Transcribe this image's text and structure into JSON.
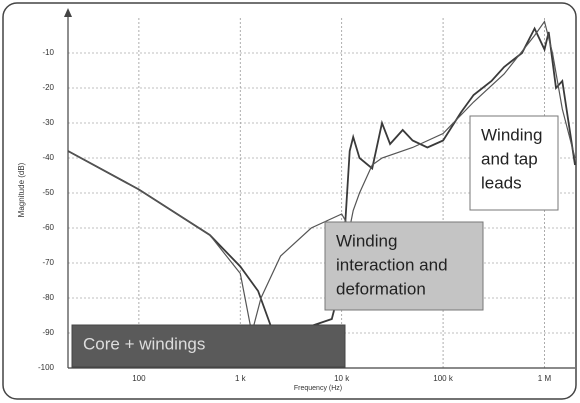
{
  "chart_data": {
    "type": "line",
    "log_x": true,
    "grid": true,
    "ylabel": "Magnitude (dB)",
    "xlabel": "Frequency (Hz)",
    "xlim": [
      20,
      2000000
    ],
    "xticks": [
      {
        "value": 100,
        "label": "100"
      },
      {
        "value": 1000,
        "label": "1 k"
      },
      {
        "value": 10000,
        "label": "10 k"
      },
      {
        "value": 100000,
        "label": "100 k"
      },
      {
        "value": 1000000,
        "label": "1 M"
      }
    ],
    "ylim": [
      -100,
      0
    ],
    "yticks": [
      -100,
      -90,
      -80,
      -70,
      -60,
      -50,
      -40,
      -30,
      -20,
      -10
    ],
    "series": [
      {
        "color": "#3a3a3a",
        "x": [
          20,
          100,
          500,
          1000,
          1500,
          2000,
          2500,
          3000,
          5000,
          8000,
          10000,
          12000,
          13000,
          15000,
          20000,
          25000,
          30000,
          40000,
          50000,
          70000,
          100000,
          150000,
          200000,
          300000,
          400000,
          600000,
          800000,
          1000000,
          1100000,
          1300000,
          1500000,
          2000000
        ],
        "values": [
          -38,
          -49,
          -62,
          -71,
          -78,
          -88,
          -97,
          -90,
          -88,
          -86,
          -75,
          -38,
          -34,
          -40,
          -43,
          -30,
          -36,
          -32,
          -35,
          -37,
          -35,
          -27,
          -22,
          -18,
          -14,
          -10,
          -3,
          -9,
          -4,
          -20,
          -18,
          -42
        ]
      },
      {
        "color": "#555555",
        "x": [
          20,
          100,
          500,
          1000,
          1300,
          1600,
          2500,
          5000,
          10000,
          12000,
          13000,
          15000,
          20000,
          25000,
          50000,
          100000,
          200000,
          400000,
          800000,
          1000000,
          1200000,
          1500000,
          2000000
        ],
        "values": [
          -38,
          -49,
          -62,
          -73,
          -90,
          -80,
          -68,
          -60,
          -56,
          -60,
          -55,
          -50,
          -42,
          -40,
          -37,
          -33,
          -24,
          -16,
          -5,
          -1,
          -10,
          -26,
          -40
        ]
      }
    ],
    "annotations": [
      {
        "lines": [
          "Core + windings"
        ]
      },
      {
        "lines": [
          "Winding",
          "interaction and",
          "deformation"
        ]
      },
      {
        "lines": [
          "Winding",
          "and tap",
          "leads"
        ]
      }
    ]
  }
}
